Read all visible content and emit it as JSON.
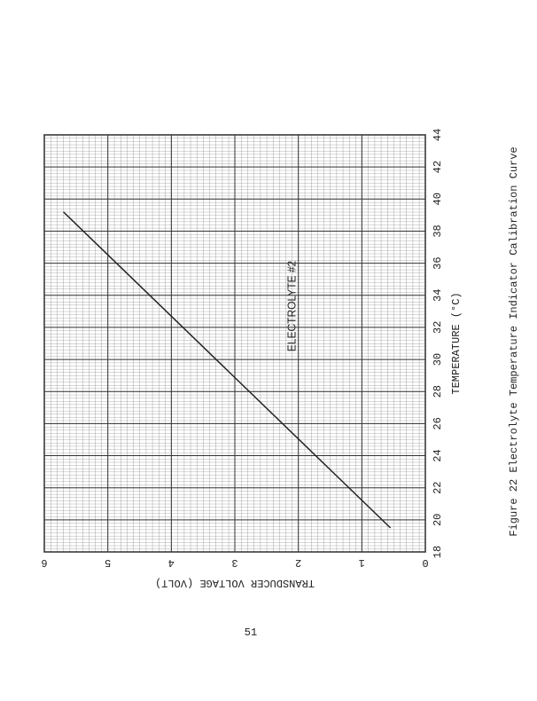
{
  "chart_data": {
    "type": "line",
    "title": "Figure 22  Electrolyte Temperature Indicator Calibration Curve",
    "x_label": "TEMPERATURE (°C)",
    "y_label": "TRANSDUCER  VOLTAGE   (VOLT)",
    "annotation": "ELECTROLYTE #2",
    "x": [
      19.5,
      39.2
    ],
    "values": [
      0.55,
      5.7
    ],
    "color": "#222222",
    "xlim": [
      18,
      44
    ],
    "xticks": [
      18,
      20,
      22,
      24,
      26,
      28,
      30,
      32,
      34,
      36,
      38,
      40,
      42,
      44
    ],
    "ylim": [
      0,
      6
    ],
    "yticks": [
      0,
      1,
      2,
      3,
      4,
      5,
      6
    ],
    "grid": true
  },
  "page_number": "51"
}
